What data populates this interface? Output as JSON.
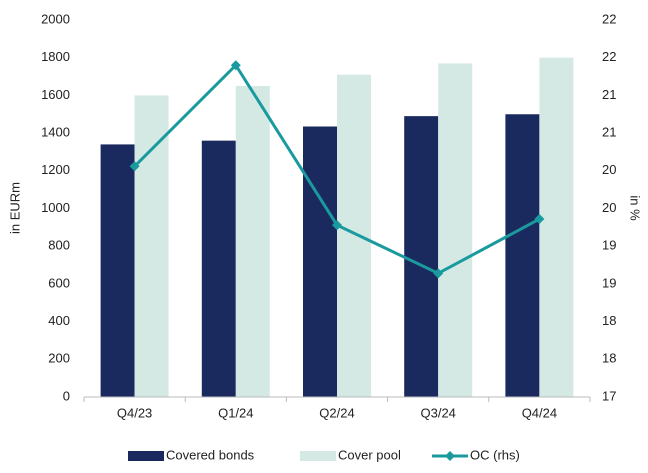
{
  "chart_data": {
    "type": "bar",
    "ylabel": "in EURm",
    "y2label": "in %",
    "categories": [
      "Q4/23",
      "Q1/24",
      "Q2/24",
      "Q3/24",
      "Q4/24"
    ],
    "series": [
      {
        "name": "Covered bonds",
        "color": "#1b2a5e",
        "values": [
          1340,
          1360,
          1435,
          1490,
          1500
        ]
      },
      {
        "name": "Cover pool",
        "color": "#d4e9e4",
        "values": [
          1600,
          1650,
          1710,
          1770,
          1800
        ]
      },
      {
        "name": "OC (rhs)",
        "color": "#1a9a9e",
        "type": "line",
        "axis": "y2",
        "values": [
          20.06,
          21.4,
          19.28,
          18.64,
          19.36
        ]
      }
    ],
    "ylim": [
      0,
      2000
    ],
    "yticks": [
      0,
      200,
      400,
      600,
      800,
      1000,
      1200,
      1400,
      1600,
      1800,
      2000
    ],
    "y2lim": [
      17,
      22
    ],
    "y2ticks": [
      17,
      {
        "value": 17.5,
        "label": "18"
      },
      18,
      {
        "value": 18.5,
        "label": "19"
      },
      19,
      {
        "value": 19.5,
        "label": "20"
      },
      20,
      {
        "value": 20.5,
        "label": "21"
      },
      21,
      {
        "value": 21.5,
        "label": "22"
      },
      22
    ],
    "legend": "bottom"
  }
}
